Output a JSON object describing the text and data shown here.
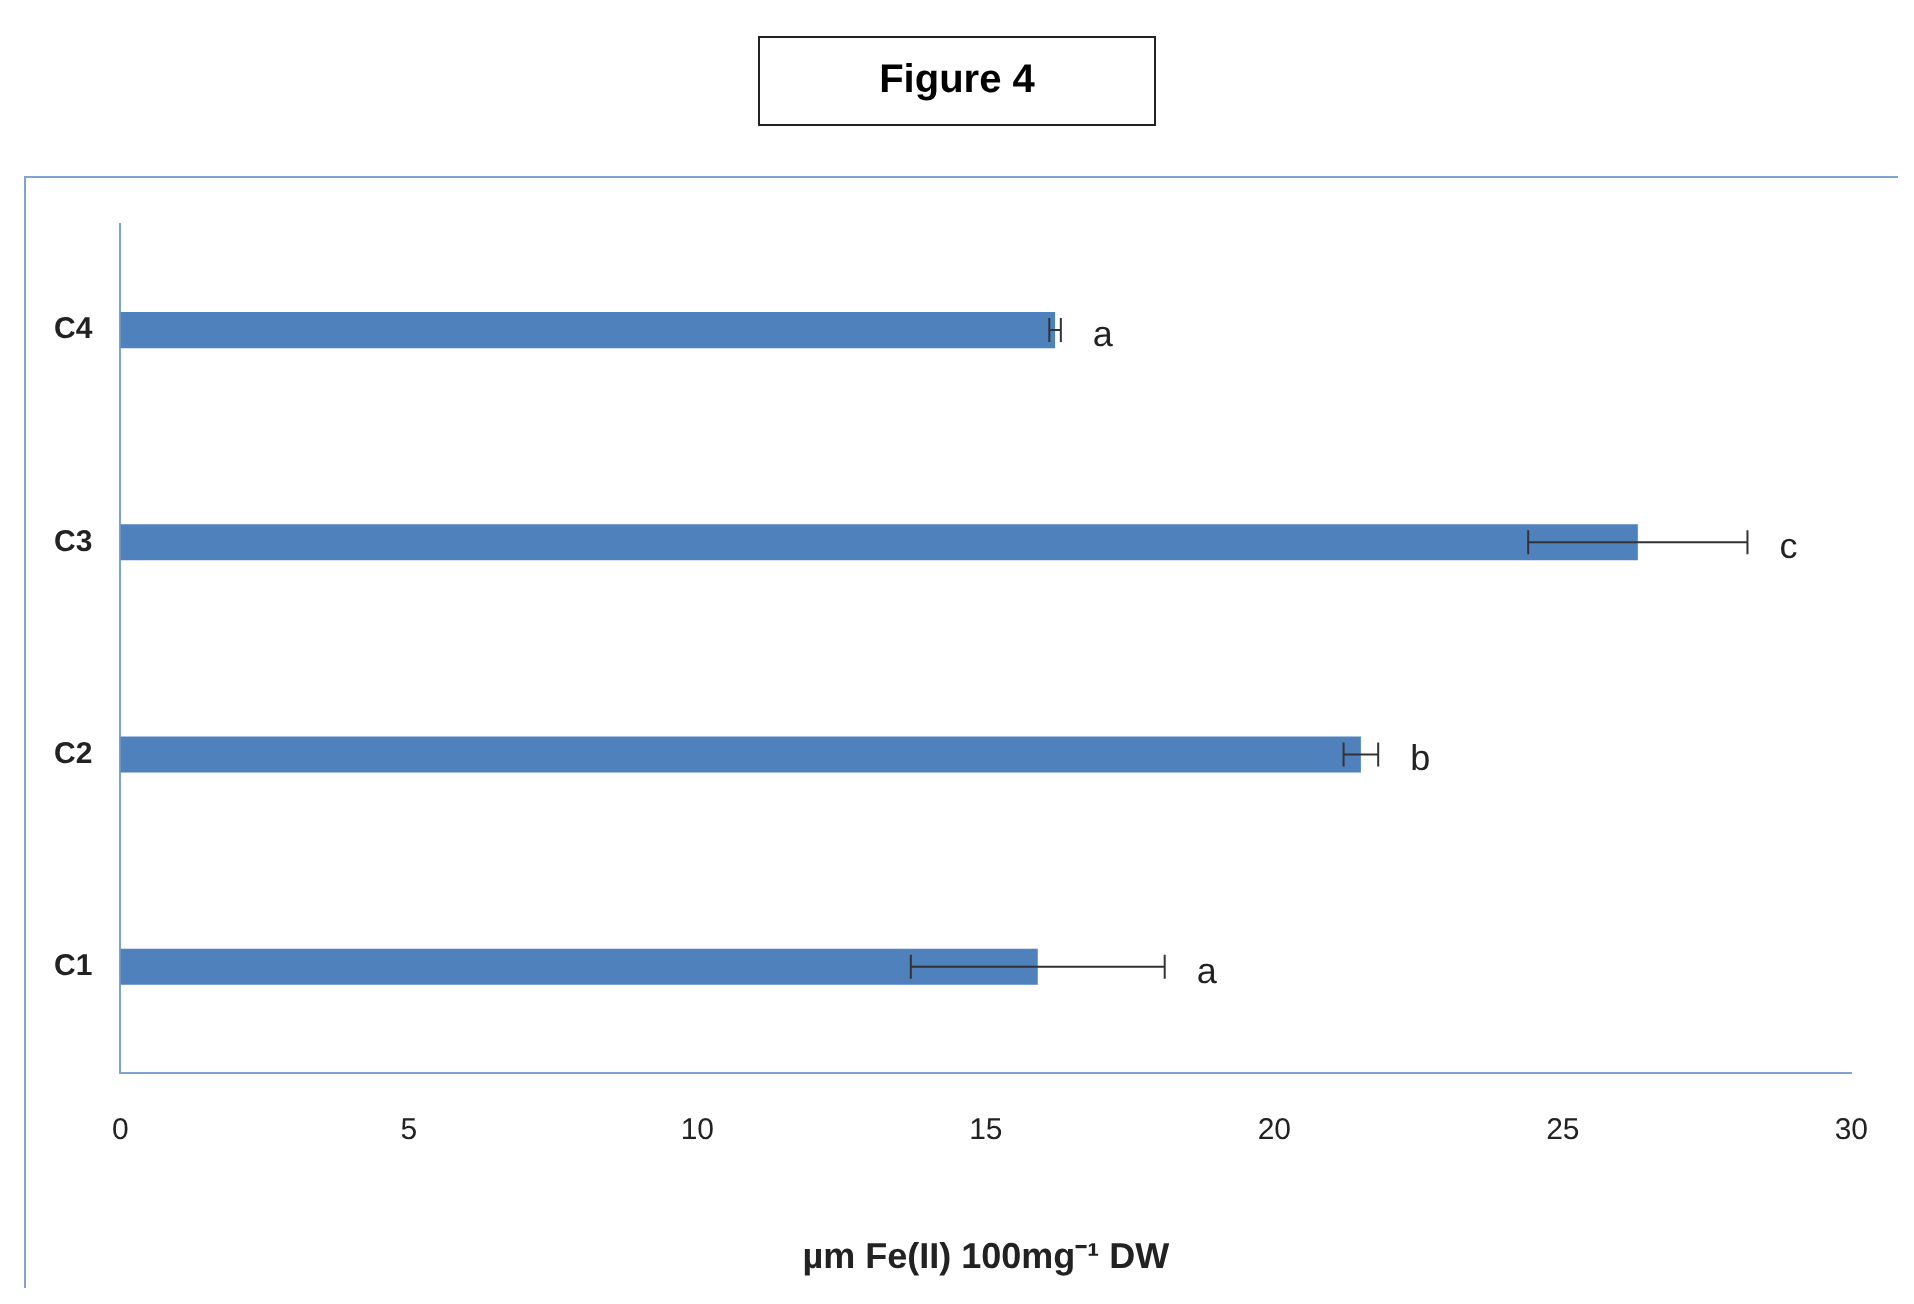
{
  "chart_data": {
    "type": "bar",
    "orientation": "horizontal",
    "title": "Figure 4",
    "xlabel": "µm Fe(II) 100mg⁻¹ DW",
    "categories": [
      "C4",
      "C3",
      "C2",
      "C1"
    ],
    "values": [
      16.2,
      26.3,
      21.5,
      15.9
    ],
    "errors": [
      0.1,
      1.9,
      0.3,
      2.2
    ],
    "color": "#4f81bd",
    "xlim": [
      0,
      30
    ],
    "xticks": [
      0,
      5,
      10,
      15,
      20,
      25,
      30
    ],
    "grid": false,
    "legend": false,
    "annotations": [
      "a",
      "c",
      "b",
      "a"
    ]
  }
}
